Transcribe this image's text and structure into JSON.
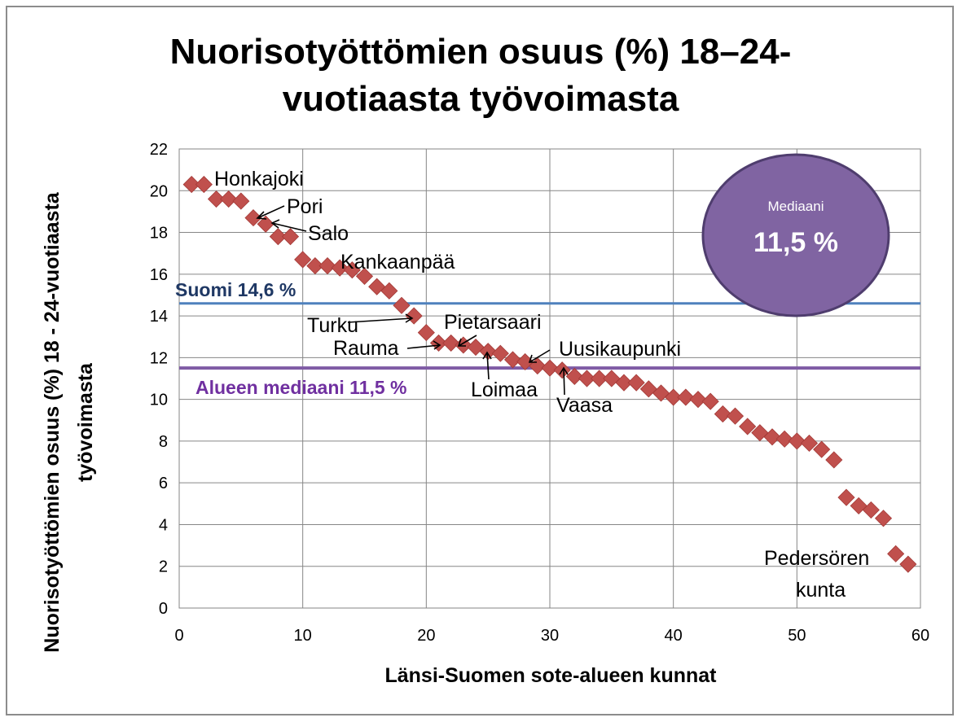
{
  "chart_data": {
    "type": "scatter",
    "title_line1": "Nuorisotyöttömien osuus (%) 18–24-",
    "title_line2": "vuotiaasta työvoimasta",
    "xlabel": "Länsi-Suomen sote-alueen kunnat",
    "ylabel_line1": "Nuorisotyöttömien osuus (%) 18 - 24-vuotiaasta",
    "ylabel_line2": "työvoimasta",
    "xlim": [
      0,
      60
    ],
    "ylim": [
      0,
      22
    ],
    "xticks": [
      "0",
      "10",
      "20",
      "30",
      "40",
      "50",
      "60"
    ],
    "yticks": [
      "0",
      "2",
      "4",
      "6",
      "8",
      "10",
      "12",
      "14",
      "16",
      "18",
      "20",
      "22"
    ],
    "grid": true,
    "marker_color": "#c0504d",
    "points": [
      [
        1,
        20.3
      ],
      [
        2,
        20.3
      ],
      [
        3,
        19.6
      ],
      [
        4,
        19.6
      ],
      [
        5,
        19.5
      ],
      [
        6,
        18.7
      ],
      [
        7,
        18.4
      ],
      [
        8,
        17.8
      ],
      [
        9,
        17.8
      ],
      [
        10,
        16.7
      ],
      [
        11,
        16.4
      ],
      [
        12,
        16.4
      ],
      [
        13,
        16.3
      ],
      [
        14,
        16.2
      ],
      [
        15,
        15.9
      ],
      [
        16,
        15.4
      ],
      [
        17,
        15.2
      ],
      [
        18,
        14.5
      ],
      [
        19,
        14.0
      ],
      [
        20,
        13.2
      ],
      [
        21,
        12.7
      ],
      [
        22,
        12.7
      ],
      [
        23,
        12.6
      ],
      [
        24,
        12.5
      ],
      [
        25,
        12.3
      ],
      [
        26,
        12.2
      ],
      [
        27,
        11.9
      ],
      [
        28,
        11.8
      ],
      [
        29,
        11.6
      ],
      [
        30,
        11.5
      ],
      [
        31,
        11.4
      ],
      [
        32,
        11.1
      ],
      [
        33,
        11.0
      ],
      [
        34,
        11.0
      ],
      [
        35,
        11.0
      ],
      [
        36,
        10.8
      ],
      [
        37,
        10.8
      ],
      [
        38,
        10.5
      ],
      [
        39,
        10.3
      ],
      [
        40,
        10.1
      ],
      [
        41,
        10.1
      ],
      [
        42,
        10.0
      ],
      [
        43,
        9.9
      ],
      [
        44,
        9.3
      ],
      [
        45,
        9.2
      ],
      [
        46,
        8.7
      ],
      [
        47,
        8.4
      ],
      [
        48,
        8.2
      ],
      [
        49,
        8.1
      ],
      [
        50,
        8.0
      ],
      [
        51,
        7.9
      ],
      [
        52,
        7.6
      ],
      [
        53,
        7.1
      ],
      [
        54,
        5.3
      ],
      [
        55,
        4.9
      ],
      [
        56,
        4.7
      ],
      [
        57,
        4.3
      ],
      [
        58,
        2.6
      ],
      [
        59,
        2.1
      ]
    ],
    "reference_lines": [
      {
        "label": "Suomi 14,6 %",
        "value": 14.6,
        "color": "#4f81bd",
        "label_color": "#1f3864"
      },
      {
        "label": "Alueen mediaani 11,5 %",
        "value": 11.5,
        "color": "#7f5ba5",
        "label_color": "#7030a0"
      }
    ],
    "annotations": [
      {
        "text": "Honkajoki",
        "x": 1.5,
        "y": 20.3
      },
      {
        "text": "Pori",
        "x": 6,
        "y": 18.7
      },
      {
        "text": "Salo",
        "x": 7,
        "y": 18.4
      },
      {
        "text": "Kankaanpää",
        "x": 14,
        "y": 16.2
      },
      {
        "text": "Turku",
        "x": 19,
        "y": 14.0
      },
      {
        "text": "Pietarsaari",
        "x": 23,
        "y": 12.6
      },
      {
        "text": "Rauma",
        "x": 21.5,
        "y": 12.7
      },
      {
        "text": "Uusikaupunki",
        "x": 28,
        "y": 11.8
      },
      {
        "text": "Loimaa",
        "x": 25,
        "y": 12.3
      },
      {
        "text": "Vaasa",
        "x": 31,
        "y": 11.4
      },
      {
        "text": "Pedersören",
        "x": 59,
        "y": 2.1
      },
      {
        "text": "kunta",
        "x": 59,
        "y": 2.1
      }
    ],
    "median_bubble": {
      "label": "Mediaani",
      "value": "11,5 %",
      "fill": "#8064a2",
      "stroke": "#4f3d6e"
    }
  }
}
